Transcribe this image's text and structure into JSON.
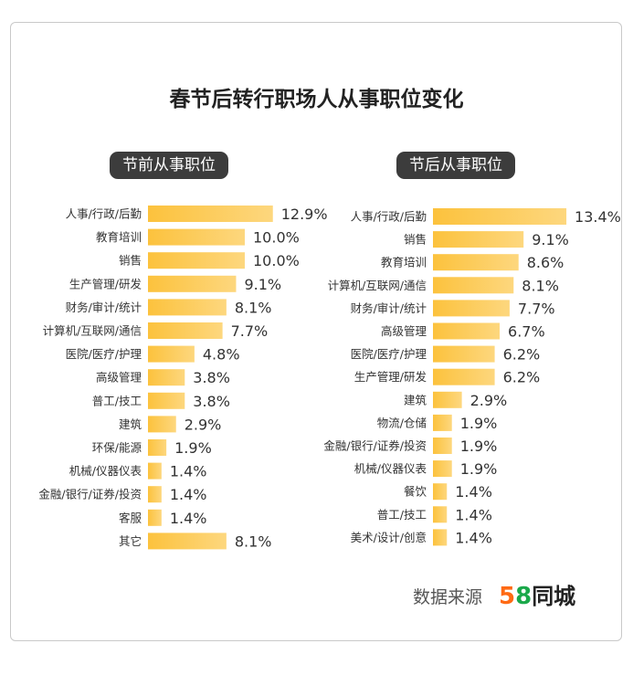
{
  "title": "春节后转行职场人从事职位变化",
  "left_label": "节前从事职位",
  "right_label": "节后从事职位",
  "source_label": "数据来源",
  "logo": {
    "digit5": "5",
    "digit8": "8",
    "name": "同城"
  },
  "colors": {
    "bar": "#fcc23d",
    "bar_light": "#fde1a0",
    "pill": "#3c3c3c",
    "logo_5": "#ff6a13",
    "logo_8": "#1aa84a"
  },
  "chart_data": [
    {
      "type": "bar",
      "orientation": "horizontal",
      "title": "节前从事职位",
      "unit": "%",
      "categories": [
        "人事/行政/后勤",
        "教育培训",
        "销售",
        "生产管理/研发",
        "财务/审计/统计",
        "计算机/互联网/通信",
        "医院/医疗/护理",
        "高级管理",
        "普工/技工",
        "建筑",
        "环保/能源",
        "机械/仪器仪表",
        "金融/银行/证券/投资",
        "客服",
        "其它"
      ],
      "values": [
        12.9,
        10.0,
        10.0,
        9.1,
        8.1,
        7.7,
        4.8,
        3.8,
        3.8,
        2.9,
        1.9,
        1.4,
        1.4,
        1.4,
        8.1
      ],
      "labels": [
        "12.9%",
        "10.0%",
        "10.0%",
        "9.1%",
        "8.1%",
        "7.7%",
        "4.8%",
        "3.8%",
        "3.8%",
        "2.9%",
        "1.9%",
        "1.4%",
        "1.4%",
        "1.4%",
        "8.1%"
      ]
    },
    {
      "type": "bar",
      "orientation": "horizontal",
      "title": "节后从事职位",
      "unit": "%",
      "categories": [
        "人事/行政/后勤",
        "销售",
        "教育培训",
        "计算机/互联网/通信",
        "财务/审计/统计",
        "高级管理",
        "医院/医疗/护理",
        "生产管理/研发",
        "建筑",
        "物流/仓储",
        "金融/银行/证券/投资",
        "机械/仪器仪表",
        "餐饮",
        "普工/技工",
        "美术/设计/创意"
      ],
      "values": [
        13.4,
        9.1,
        8.6,
        8.1,
        7.7,
        6.7,
        6.2,
        6.2,
        2.9,
        1.9,
        1.9,
        1.9,
        1.4,
        1.4,
        1.4
      ],
      "labels": [
        "13.4%",
        "9.1%",
        "8.6%",
        "8.1%",
        "7.7%",
        "6.7%",
        "6.2%",
        "6.2%",
        "2.9%",
        "1.9%",
        "1.9%",
        "1.9%",
        "1.4%",
        "1.4%",
        "1.4%"
      ]
    }
  ]
}
